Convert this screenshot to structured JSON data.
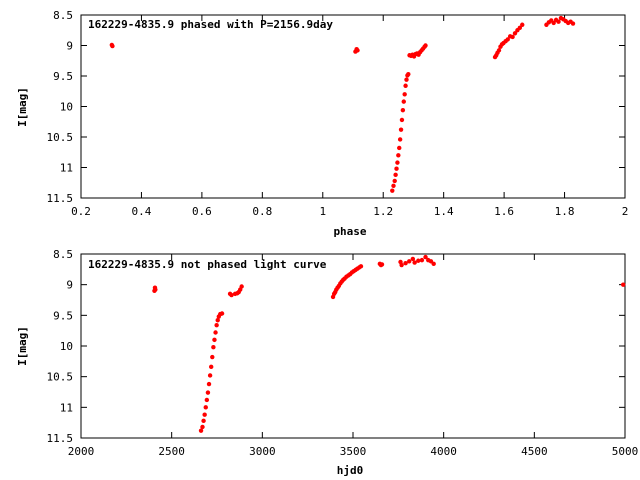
{
  "chart_data": [
    {
      "type": "scatter",
      "title": "162229-4835.9 phased with P=2156.9day",
      "xlabel": "phase",
      "ylabel": "I[mag]",
      "xlim": [
        0.2,
        2.0
      ],
      "ylim": [
        11.5,
        8.5
      ],
      "y_inverted": true,
      "grid": false,
      "legend": "none",
      "marker_color": "#ff0000",
      "x_ticks": [
        "0.2",
        "0.4",
        "0.6",
        "0.8",
        "1",
        "1.2",
        "1.4",
        "1.6",
        "1.8",
        "2"
      ],
      "y_ticks": [
        "8.5",
        "9",
        "9.5",
        "10",
        "10.5",
        "11",
        "11.5"
      ],
      "series": [
        {
          "x": [
            0.302,
            0.304,
            1.108,
            1.112,
            1.115,
            1.23,
            1.234,
            1.238,
            1.241,
            1.244,
            1.247,
            1.25,
            1.253,
            1.256,
            1.259,
            1.262,
            1.265,
            1.268,
            1.271,
            1.274,
            1.277,
            1.28,
            1.283,
            1.287,
            1.292,
            1.297,
            1.302,
            1.307,
            1.312,
            1.317,
            1.322,
            1.327,
            1.332,
            1.337,
            1.34,
            1.57,
            1.574,
            1.578,
            1.583,
            1.588,
            1.593,
            1.598,
            1.605,
            1.612,
            1.62,
            1.628,
            1.636,
            1.644,
            1.652,
            1.66,
            1.74,
            1.748,
            1.756,
            1.764,
            1.772,
            1.78,
            1.788,
            1.796,
            1.804,
            1.812,
            1.82,
            1.828
          ],
          "y": [
            8.99,
            9.01,
            9.1,
            9.06,
            9.08,
            11.38,
            11.3,
            11.22,
            11.12,
            11.02,
            10.92,
            10.8,
            10.68,
            10.54,
            10.38,
            10.22,
            10.06,
            9.92,
            9.8,
            9.66,
            9.56,
            9.49,
            9.47,
            9.16,
            9.17,
            9.15,
            9.18,
            9.14,
            9.13,
            9.15,
            9.11,
            9.08,
            9.05,
            9.02,
            9.0,
            9.19,
            9.16,
            9.12,
            9.08,
            9.02,
            8.98,
            8.96,
            8.93,
            8.9,
            8.85,
            8.86,
            8.8,
            8.75,
            8.71,
            8.66,
            8.66,
            8.62,
            8.59,
            8.63,
            8.58,
            8.61,
            8.55,
            8.57,
            8.6,
            8.63,
            8.61,
            8.64
          ]
        }
      ]
    },
    {
      "type": "scatter",
      "title": "162229-4835.9 not phased light curve",
      "xlabel": "hjd0",
      "ylabel": "I[mag]",
      "xlim": [
        2000,
        5000
      ],
      "ylim": [
        11.5,
        8.5
      ],
      "y_inverted": true,
      "grid": false,
      "legend": "none",
      "marker_color": "#ff0000",
      "x_ticks": [
        "2000",
        "2500",
        "3000",
        "3500",
        "4000",
        "4500",
        "5000"
      ],
      "y_ticks": [
        "8.5",
        "9",
        "9.5",
        "10",
        "10.5",
        "11",
        "11.5"
      ],
      "series": [
        {
          "x": [
            2405,
            2408,
            2410,
            2662,
            2670,
            2676,
            2682,
            2688,
            2694,
            2700,
            2706,
            2712,
            2718,
            2724,
            2730,
            2736,
            2742,
            2748,
            2754,
            2760,
            2768,
            2778,
            2822,
            2830,
            2850,
            2862,
            2870,
            2878,
            2886,
            3390,
            3396,
            3402,
            3408,
            3415,
            3422,
            3430,
            3438,
            3446,
            3454,
            3464,
            3474,
            3484,
            3494,
            3504,
            3514,
            3524,
            3534,
            3544,
            3648,
            3654,
            3660,
            3762,
            3768,
            3790,
            3810,
            3830,
            3840,
            3860,
            3880,
            3900,
            3915,
            3930,
            3945,
            4990
          ],
          "y": [
            9.1,
            9.05,
            9.08,
            11.38,
            11.32,
            11.22,
            11.12,
            11.0,
            10.88,
            10.76,
            10.62,
            10.48,
            10.34,
            10.18,
            10.02,
            9.9,
            9.78,
            9.66,
            9.58,
            9.52,
            9.48,
            9.47,
            9.15,
            9.17,
            9.15,
            9.14,
            9.12,
            9.08,
            9.03,
            9.2,
            9.15,
            9.12,
            9.08,
            9.05,
            9.02,
            8.98,
            8.95,
            8.92,
            8.9,
            8.87,
            8.85,
            8.83,
            8.8,
            8.78,
            8.76,
            8.74,
            8.72,
            8.7,
            8.66,
            8.68,
            8.67,
            8.63,
            8.68,
            8.65,
            8.62,
            8.58,
            8.64,
            8.61,
            8.6,
            8.55,
            8.6,
            8.62,
            8.66,
            9.0
          ]
        }
      ]
    }
  ]
}
